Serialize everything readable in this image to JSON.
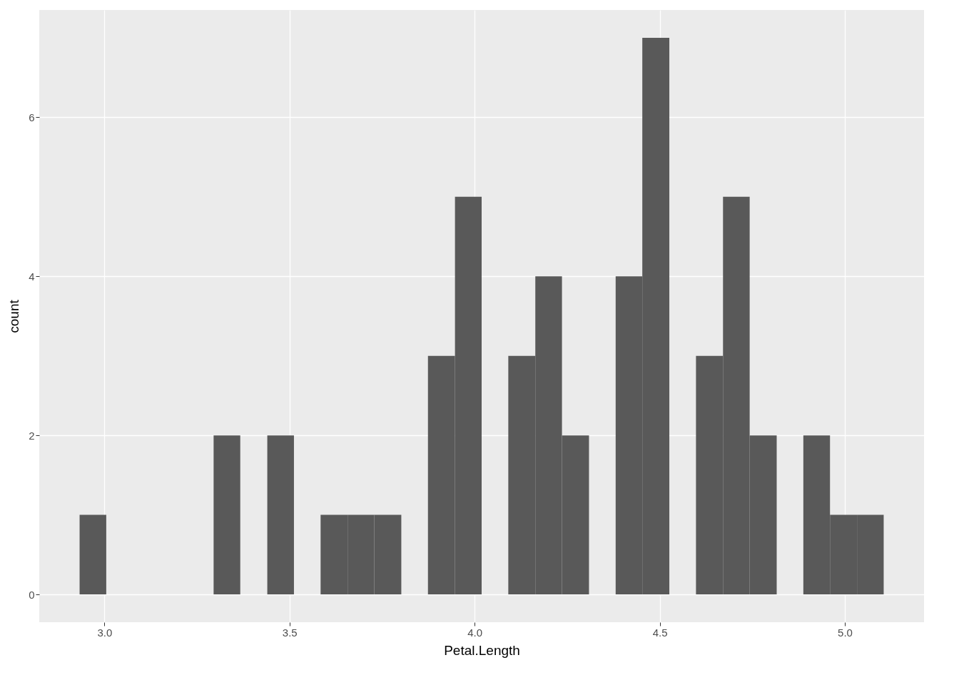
{
  "chart_data": {
    "type": "histogram",
    "xlabel": "Petal.Length",
    "ylabel": "count",
    "bins": [
      2.933,
      3.005,
      3.295,
      3.367,
      3.44,
      3.512,
      3.584,
      3.657,
      3.729,
      3.802,
      3.874,
      3.947,
      4.019,
      4.091,
      4.164,
      4.236,
      4.309,
      4.381,
      4.453,
      4.526,
      4.598,
      4.671,
      4.743,
      4.816,
      4.888,
      4.96,
      5.033,
      5.105
    ],
    "values": [
      1,
      0,
      2,
      0,
      2,
      0,
      1,
      1,
      1,
      0,
      3,
      5,
      0,
      3,
      4,
      2,
      0,
      4,
      7,
      0,
      3,
      5,
      2,
      0,
      2,
      1,
      1
    ],
    "color": "#595959",
    "xlim": [
      2.824,
      5.214
    ],
    "ylim": [
      -0.35,
      7.35
    ],
    "xticks": [
      {
        "value": 3,
        "label": "3.0"
      },
      3.5,
      {
        "value": 4,
        "label": "4.0"
      },
      4.5,
      {
        "value": 5,
        "label": "5.0"
      }
    ],
    "yticks": [
      0,
      2,
      4,
      6
    ],
    "grid": true
  }
}
